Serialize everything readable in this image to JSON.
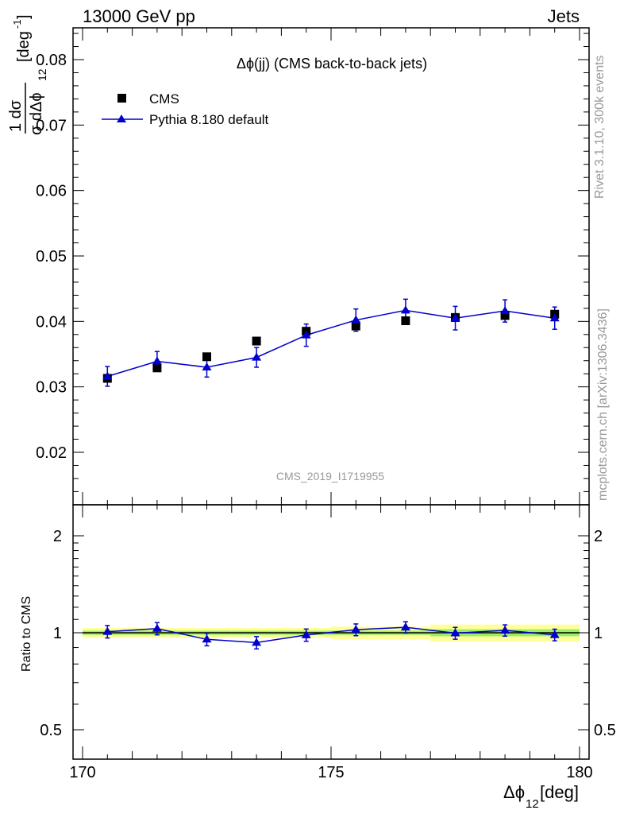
{
  "header": {
    "left": "13000 GeV pp",
    "right": "Jets"
  },
  "side_labels": {
    "rivet": "Rivet 3.1.10,  300k events",
    "mcplots": "mcplots.cern.ch [arXiv:1306.3436]"
  },
  "chart_data": [
    {
      "type": "scatter",
      "title": "Δϕ(jj) (CMS back-to-back jets)",
      "watermark": "CMS_2019_I1719955",
      "ylabel_main": "1   dσ",
      "ylabel_den": "σ dΔϕ",
      "ylabel_sub": "12",
      "ylabel_unit": "[deg",
      "ylabel_unit_sup": "-1",
      "ylabel_unit_close": "]",
      "xlim": [
        170,
        180
      ],
      "ylim": [
        0.012,
        0.085
      ],
      "yticks": [
        0.02,
        0.03,
        0.04,
        0.05,
        0.06,
        0.07,
        0.08
      ],
      "ytick_labels": [
        "0.02",
        "0.03",
        "0.04",
        "0.05",
        "0.06",
        "0.07",
        "0.08"
      ],
      "legend_position": "top-left",
      "series": [
        {
          "name": "CMS",
          "color": "#000000",
          "marker": "square",
          "x": [
            170.5,
            171.5,
            172.5,
            173.5,
            174.5,
            175.5,
            176.5,
            177.5,
            178.5,
            179.5
          ],
          "y": [
            0.0313,
            0.0329,
            0.0346,
            0.037,
            0.0385,
            0.0393,
            0.0401,
            0.0406,
            0.0409,
            0.0411
          ],
          "yerr": [
            0.0003,
            0.0003,
            0.0003,
            0.0003,
            0.0003,
            0.0003,
            0.0003,
            0.0003,
            0.0003,
            0.0003
          ]
        },
        {
          "name": "Pythia 8.180 default",
          "color": "#0000cc",
          "marker": "triangle",
          "x": [
            170.5,
            171.5,
            172.5,
            173.5,
            174.5,
            175.5,
            176.5,
            177.5,
            178.5,
            179.5
          ],
          "y": [
            0.0316,
            0.0339,
            0.033,
            0.0345,
            0.0379,
            0.0402,
            0.0417,
            0.0405,
            0.0416,
            0.0405
          ],
          "yerr": [
            0.0015,
            0.0015,
            0.0015,
            0.0015,
            0.0017,
            0.0017,
            0.0017,
            0.0018,
            0.0017,
            0.0017
          ]
        }
      ]
    },
    {
      "type": "scatter",
      "ylabel": "Ratio to CMS",
      "xlabel": "Δϕ",
      "xlabel_sub": "12",
      "xlabel_unit": " [deg]",
      "xlim": [
        170,
        180
      ],
      "ylim": [
        0.38,
        2.45
      ],
      "log_y": true,
      "xticks": [
        170,
        175,
        180
      ],
      "xtick_labels": [
        "170",
        "175",
        "180"
      ],
      "yticks": [
        0.5,
        1,
        2
      ],
      "ytick_labels": [
        "0.5",
        "1",
        "2"
      ],
      "band_colors": {
        "outer": "#ffff99",
        "inner": "#99ee66"
      },
      "band": {
        "x": [
          170,
          171,
          172,
          173,
          174,
          175,
          176,
          177,
          178,
          179,
          180
        ],
        "inner": [
          0.015,
          0.015,
          0.015,
          0.015,
          0.015,
          0.015,
          0.015,
          0.025,
          0.025,
          0.025
        ],
        "outer": [
          0.035,
          0.035,
          0.035,
          0.035,
          0.035,
          0.045,
          0.045,
          0.06,
          0.06,
          0.06
        ]
      },
      "series": [
        {
          "name": "Pythia 8.180 default",
          "color": "#0000cc",
          "x": [
            170.5,
            171.5,
            172.5,
            173.5,
            174.5,
            175.5,
            176.5,
            177.5,
            178.5,
            179.5
          ],
          "y": [
            1.008,
            1.03,
            0.954,
            0.932,
            0.984,
            1.022,
            1.04,
            0.997,
            1.017,
            0.985
          ],
          "yerr": [
            0.045,
            0.045,
            0.043,
            0.041,
            0.043,
            0.043,
            0.042,
            0.042,
            0.041,
            0.041
          ]
        }
      ]
    }
  ]
}
